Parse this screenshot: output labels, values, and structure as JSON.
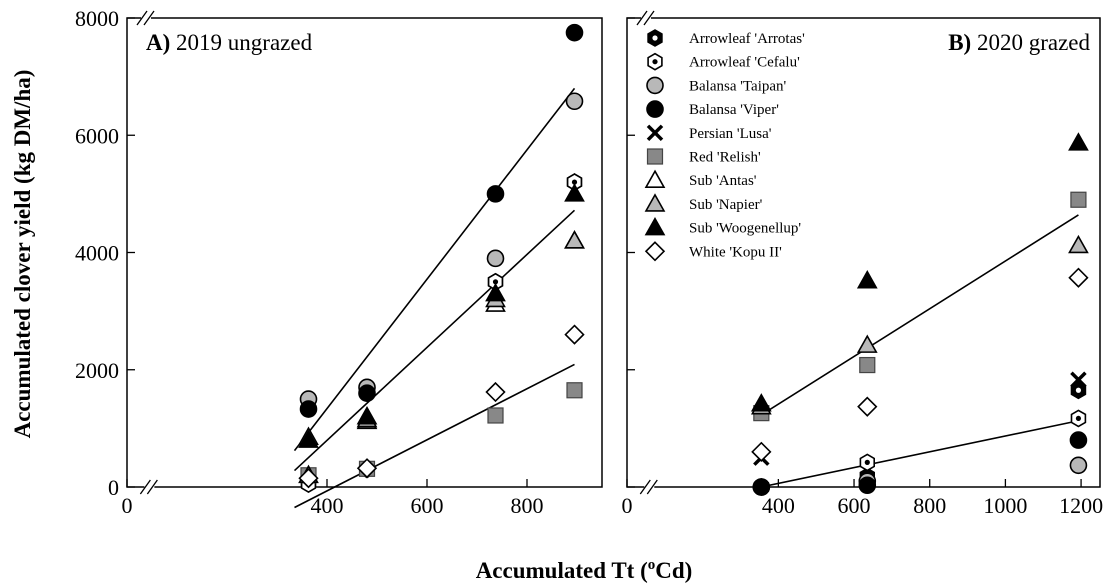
{
  "ylabel": "Accumulated clover yield (kg DM/ha)",
  "xlabel": {
    "prefix": "Accumulated Tt (",
    "sup": "o",
    "suffix": "Cd)"
  },
  "colors": {
    "black": "#000000",
    "grey": "#b8b8b8",
    "darkgrey": "#888888",
    "white": "#ffffff"
  },
  "legend": [
    {
      "label": "Arrowleaf 'Arrotas'",
      "marker": "hexagon-dot-black"
    },
    {
      "label": "Arrowleaf 'Cefalu'",
      "marker": "hexagon-dot-white"
    },
    {
      "label": "Balansa 'Taipan'",
      "marker": "circle-grey"
    },
    {
      "label": "Balansa 'Viper'",
      "marker": "circle-black"
    },
    {
      "label": "Persian 'Lusa'",
      "marker": "x-black"
    },
    {
      "label": "Red 'Relish'",
      "marker": "square-darkgrey"
    },
    {
      "label": "Sub 'Antas'",
      "marker": "triangle-white"
    },
    {
      "label": "Sub 'Napier'",
      "marker": "triangle-grey"
    },
    {
      "label": "Sub 'Woogenellup'",
      "marker": "triangle-black"
    },
    {
      "label": "White 'Kopu II'",
      "marker": "diamond-white"
    }
  ],
  "chart_data": [
    {
      "type": "scatter",
      "title_letter": "A)",
      "title_rest": " 2019 ungrazed",
      "xlim": [
        0,
        950
      ],
      "ylim": [
        0,
        8000
      ],
      "axis_break": true,
      "xticks": [
        0,
        400,
        600,
        800
      ],
      "yticks": [
        0,
        2000,
        4000,
        6000,
        8000
      ],
      "series": [
        {
          "name": "Arrowleaf 'Arrotas'",
          "marker": "hexagon-dot-black",
          "points": [
            [
              363,
              80
            ],
            [
              480,
              320
            ],
            [
              737,
              3500
            ],
            [
              895,
              5200
            ]
          ]
        },
        {
          "name": "Arrowleaf 'Cefalu'",
          "marker": "hexagon-dot-white",
          "points": [
            [
              363,
              50
            ],
            [
              480,
              300
            ],
            [
              737,
              3500
            ],
            [
              895,
              5200
            ]
          ]
        },
        {
          "name": "Balansa 'Taipan'",
          "marker": "circle-grey",
          "points": [
            [
              363,
              1500
            ],
            [
              480,
              1700
            ],
            [
              737,
              3900
            ],
            [
              895,
              6580
            ]
          ]
        },
        {
          "name": "Balansa 'Viper'",
          "marker": "circle-black",
          "points": [
            [
              363,
              1330
            ],
            [
              480,
              1600
            ],
            [
              737,
              5000
            ],
            [
              895,
              7750
            ]
          ]
        },
        {
          "name": "Red 'Relish'",
          "marker": "square-darkgrey",
          "points": [
            [
              363,
              200
            ],
            [
              480,
              310
            ],
            [
              737,
              1220
            ],
            [
              895,
              1650
            ]
          ]
        },
        {
          "name": "Sub 'Antas'",
          "marker": "triangle-white",
          "points": [
            [
              363,
              850
            ],
            [
              480,
              1120
            ],
            [
              737,
              3120
            ],
            [
              895,
              4200
            ]
          ]
        },
        {
          "name": "Sub 'Napier'",
          "marker": "triangle-grey",
          "points": [
            [
              363,
              200
            ],
            [
              480,
              1150
            ],
            [
              737,
              3200
            ],
            [
              895,
              4200
            ]
          ]
        },
        {
          "name": "Sub 'Woogenellup'",
          "marker": "triangle-black",
          "points": [
            [
              363,
              800
            ],
            [
              480,
              1200
            ],
            [
              737,
              3300
            ],
            [
              895,
              5000
            ]
          ]
        },
        {
          "name": "White 'Kopu II'",
          "marker": "diamond-white",
          "points": [
            [
              363,
              150
            ],
            [
              480,
              320
            ],
            [
              737,
              1620
            ],
            [
              895,
              2600
            ]
          ]
        }
      ],
      "fit_lines": [
        {
          "x": [
            335,
            895
          ],
          "y": [
            620,
            6800
          ]
        },
        {
          "x": [
            335,
            895
          ],
          "y": [
            280,
            4720
          ]
        },
        {
          "x": [
            335,
            895
          ],
          "y": [
            -350,
            2090
          ]
        }
      ]
    },
    {
      "type": "scatter",
      "title_letter": "B)",
      "title_rest": " 2020 grazed",
      "xlim": [
        0,
        1250
      ],
      "ylim": [
        0,
        8000
      ],
      "axis_break": true,
      "xticks": [
        0,
        400,
        600,
        800,
        1000,
        1200
      ],
      "yticks": [
        0,
        2000,
        4000,
        6000,
        8000
      ],
      "series": [
        {
          "name": "Arrowleaf 'Arrotas'",
          "marker": "hexagon-dot-black",
          "points": [
            [
              355,
              0
            ],
            [
              635,
              180
            ],
            [
              1193,
              1650
            ]
          ]
        },
        {
          "name": "Arrowleaf 'Cefalu'",
          "marker": "hexagon-dot-white",
          "points": [
            [
              355,
              0
            ],
            [
              635,
              420
            ],
            [
              1193,
              1170
            ]
          ]
        },
        {
          "name": "Balansa 'Taipan'",
          "marker": "circle-grey",
          "points": [
            [
              355,
              0
            ],
            [
              635,
              100
            ],
            [
              1193,
              370
            ]
          ]
        },
        {
          "name": "Balansa 'Viper'",
          "marker": "circle-black",
          "points": [
            [
              355,
              0
            ],
            [
              635,
              30
            ],
            [
              1193,
              800
            ]
          ]
        },
        {
          "name": "Persian 'Lusa'",
          "marker": "x-black",
          "points": [
            [
              355,
              500
            ],
            [
              1193,
              1830
            ]
          ]
        },
        {
          "name": "Red 'Relish'",
          "marker": "square-darkgrey",
          "points": [
            [
              355,
              1260
            ],
            [
              635,
              2080
            ],
            [
              1193,
              4900
            ]
          ]
        },
        {
          "name": "Sub 'Napier'",
          "marker": "triangle-grey",
          "points": [
            [
              355,
              1370
            ],
            [
              635,
              2420
            ],
            [
              1193,
              4120
            ]
          ]
        },
        {
          "name": "Sub 'Woogenellup'",
          "marker": "triangle-black",
          "points": [
            [
              355,
              1420
            ],
            [
              635,
              3520
            ],
            [
              1193,
              5870
            ]
          ]
        },
        {
          "name": "White 'Kopu II'",
          "marker": "diamond-white",
          "points": [
            [
              355,
              600
            ],
            [
              635,
              1370
            ],
            [
              1193,
              3570
            ]
          ]
        }
      ],
      "fit_lines": [
        {
          "x": [
            355,
            1193
          ],
          "y": [
            1230,
            4640
          ]
        },
        {
          "x": [
            355,
            1193
          ],
          "y": [
            0,
            1130
          ]
        }
      ]
    }
  ]
}
